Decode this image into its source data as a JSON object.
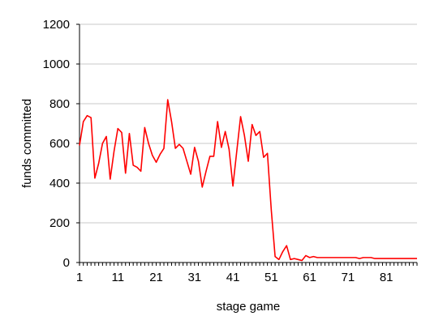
{
  "chart_data": {
    "type": "line",
    "title": "",
    "xlabel": "stage game",
    "ylabel": "funds committed",
    "ylim": [
      0,
      1200
    ],
    "xlim": [
      1,
      89
    ],
    "yticks": [
      0,
      200,
      400,
      600,
      800,
      1000,
      1200
    ],
    "xticks": [
      1,
      11,
      21,
      31,
      41,
      51,
      61,
      71,
      81
    ],
    "grid": "horizontal",
    "legend": "none",
    "series": [
      {
        "color": "#ff0000",
        "x": [
          1,
          2,
          3,
          4,
          5,
          6,
          7,
          8,
          9,
          10,
          11,
          12,
          13,
          14,
          15,
          16,
          17,
          18,
          19,
          20,
          21,
          22,
          23,
          24,
          25,
          26,
          27,
          28,
          29,
          30,
          31,
          32,
          33,
          34,
          35,
          36,
          37,
          38,
          39,
          40,
          41,
          42,
          43,
          44,
          45,
          46,
          47,
          48,
          49,
          50,
          51,
          52,
          53,
          54,
          55,
          56,
          57,
          58,
          59,
          60,
          61,
          62,
          63,
          64,
          65,
          66,
          67,
          68,
          69,
          70,
          71,
          72,
          73,
          74,
          75,
          76,
          77,
          78,
          79,
          80,
          81,
          82,
          83,
          84,
          85,
          86,
          87,
          88,
          89
        ],
        "values": [
          590,
          710,
          740,
          730,
          425,
          500,
          600,
          635,
          420,
          560,
          675,
          655,
          450,
          650,
          490,
          480,
          460,
          680,
          600,
          540,
          505,
          545,
          575,
          820,
          710,
          575,
          595,
          575,
          510,
          445,
          580,
          510,
          380,
          460,
          535,
          535,
          710,
          580,
          660,
          570,
          385,
          560,
          735,
          640,
          510,
          695,
          640,
          660,
          530,
          550,
          265,
          30,
          15,
          55,
          85,
          15,
          20,
          15,
          10,
          35,
          25,
          30,
          25,
          25,
          25,
          25,
          25,
          25,
          25,
          25,
          25,
          25,
          25,
          20,
          25,
          25,
          25,
          20,
          20,
          20,
          20,
          20,
          20,
          20,
          20,
          20,
          20,
          20,
          20
        ]
      }
    ]
  }
}
